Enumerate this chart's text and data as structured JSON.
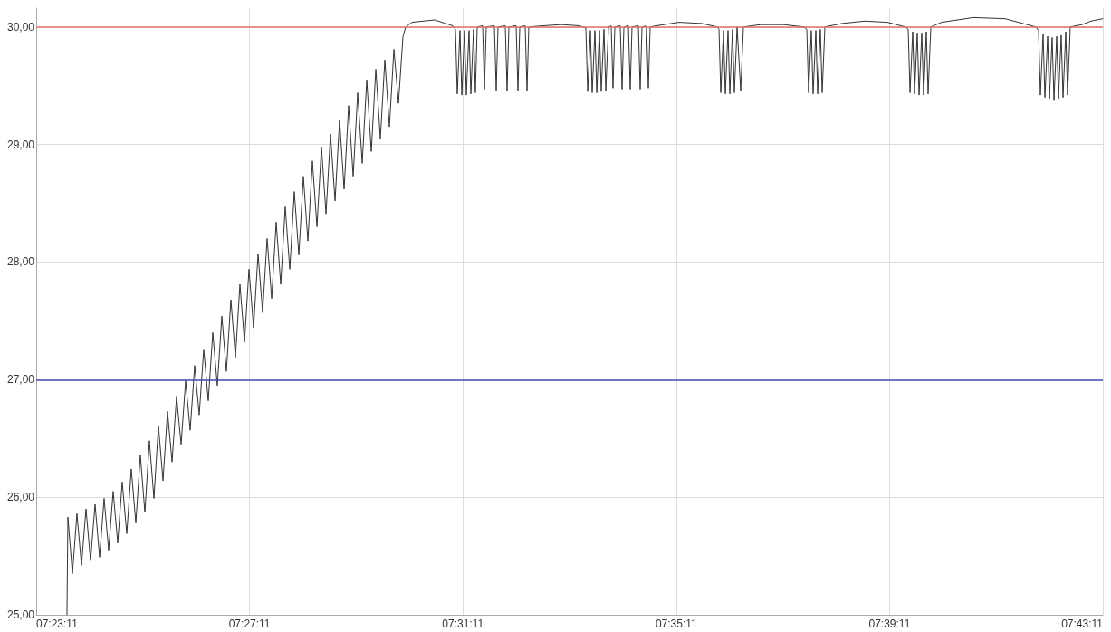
{
  "chart_data": {
    "type": "line",
    "xlim": [
      7.386389,
      7.719722
    ],
    "xticks": [
      {
        "value": 7.386389,
        "label": "07:23:11"
      },
      {
        "value": 7.453056,
        "label": "07:27:11"
      },
      {
        "value": 7.519722,
        "label": "07:31:11"
      },
      {
        "value": 7.586389,
        "label": "07:35:11"
      },
      {
        "value": 7.653056,
        "label": "07:39:11"
      },
      {
        "value": 7.719722,
        "label": "07:43:11"
      }
    ],
    "ylim": [
      25,
      30.16
    ],
    "yticks": [
      {
        "value": 25,
        "label": "25,00"
      },
      {
        "value": 26,
        "label": "26,00"
      },
      {
        "value": 27,
        "label": "27,00"
      },
      {
        "value": 28,
        "label": "28,00"
      },
      {
        "value": 29,
        "label": "29,00"
      },
      {
        "value": 30,
        "label": "30,00"
      }
    ],
    "grid": true,
    "marker": "none",
    "line_style": "solid",
    "ref_lines": [
      {
        "axis": "y",
        "value": 30,
        "color": "#e07070"
      },
      {
        "axis": "y",
        "value": 27,
        "color": "#4a4ab8"
      }
    ],
    "series": [
      {
        "color": "#333333",
        "x": [
          7.396,
          7.39629,
          7.39771,
          7.39912,
          7.40054,
          7.40195,
          7.40337,
          7.40478,
          7.4062,
          7.40761,
          7.40903,
          7.41044,
          7.41186,
          7.41327,
          7.41469,
          7.4161,
          7.41752,
          7.41893,
          7.42035,
          7.42176,
          7.42318,
          7.42459,
          7.42601,
          7.42742,
          7.42884,
          7.43025,
          7.43167,
          7.43308,
          7.4345,
          7.43591,
          7.43733,
          7.43874,
          7.44016,
          7.44157,
          7.44299,
          7.4444,
          7.44582,
          7.44723,
          7.44865,
          7.45006,
          7.45148,
          7.45289,
          7.45431,
          7.45572,
          7.45714,
          7.45855,
          7.45997,
          7.46138,
          7.4628,
          7.46421,
          7.46563,
          7.46704,
          7.46846,
          7.46987,
          7.47129,
          7.4727,
          7.47412,
          7.47553,
          7.47695,
          7.47836,
          7.47978,
          7.48119,
          7.48261,
          7.48402,
          7.48544,
          7.48685,
          7.48827,
          7.48968,
          7.4911,
          7.49251,
          7.49393,
          7.49534,
          7.49676,
          7.49817,
          7.49959,
          7.501,
          7.50185,
          7.50382,
          7.5109,
          7.51656,
          7.5174,
          7.51797,
          7.51882,
          7.51939,
          7.52023,
          7.5208,
          7.52165,
          7.52221,
          7.52306,
          7.52363,
          7.5242,
          7.52589,
          7.52646,
          7.52703,
          7.52957,
          7.53014,
          7.5307,
          7.53297,
          7.53353,
          7.5341,
          7.53636,
          7.53693,
          7.5375,
          7.53919,
          7.53976,
          7.54032,
          7.54485,
          7.55051,
          7.55617,
          7.55815,
          7.55872,
          7.55957,
          7.56013,
          7.56098,
          7.56155,
          7.5624,
          7.56296,
          7.56381,
          7.56438,
          7.56523,
          7.56607,
          7.56664,
          7.56721,
          7.5689,
          7.56947,
          7.57004,
          7.57145,
          7.57202,
          7.57258,
          7.57456,
          7.57513,
          7.5757,
          7.57711,
          7.57768,
          7.57824,
          7.58022,
          7.5873,
          7.59437,
          7.59918,
          7.59975,
          7.60031,
          7.60116,
          7.60173,
          7.60258,
          7.60314,
          7.60399,
          7.60456,
          7.60541,
          7.60654,
          7.60739,
          7.61276,
          7.61984,
          7.62635,
          7.6272,
          7.62776,
          7.62861,
          7.62918,
          7.63003,
          7.63059,
          7.63144,
          7.63201,
          7.63286,
          7.63823,
          7.64531,
          7.65238,
          7.65804,
          7.65889,
          7.65946,
          7.6603,
          7.66087,
          7.66172,
          7.66229,
          7.66313,
          7.6637,
          7.66455,
          7.66511,
          7.66596,
          7.66936,
          7.67926,
          7.68917,
          7.69879,
          7.69964,
          7.7002,
          7.70105,
          7.70162,
          7.70247,
          7.70303,
          7.70388,
          7.70445,
          7.7053,
          7.70586,
          7.70671,
          7.70728,
          7.70813,
          7.70869,
          7.70954,
          7.71322,
          7.71605,
          7.7197
        ],
        "values": [
          25.0,
          25.83,
          25.35,
          25.86,
          25.42,
          25.9,
          25.46,
          25.94,
          25.49,
          25.99,
          25.55,
          26.05,
          25.61,
          26.13,
          25.69,
          26.24,
          25.78,
          26.36,
          25.87,
          26.48,
          25.99,
          26.61,
          26.14,
          26.73,
          26.3,
          26.86,
          26.45,
          26.99,
          26.57,
          27.12,
          26.7,
          27.26,
          26.82,
          27.4,
          26.95,
          27.54,
          27.07,
          27.68,
          27.19,
          27.81,
          27.32,
          27.94,
          27.44,
          28.07,
          27.57,
          28.2,
          27.69,
          28.34,
          27.81,
          28.47,
          27.94,
          28.6,
          28.06,
          28.73,
          28.18,
          28.86,
          28.3,
          28.98,
          28.41,
          29.09,
          28.52,
          29.21,
          28.62,
          29.33,
          28.73,
          29.44,
          28.84,
          29.55,
          28.94,
          29.64,
          29.05,
          29.72,
          29.15,
          29.81,
          29.35,
          29.92,
          30.0,
          30.04,
          30.06,
          30.01,
          29.98,
          29.43,
          29.97,
          29.42,
          29.97,
          29.42,
          29.97,
          29.43,
          29.98,
          29.44,
          30.0,
          30.01,
          29.47,
          30.0,
          30.01,
          29.46,
          30.0,
          30.01,
          29.46,
          30.0,
          30.01,
          29.46,
          30.0,
          30.01,
          29.46,
          30.0,
          30.01,
          30.02,
          30.01,
          29.99,
          29.45,
          29.97,
          29.44,
          29.97,
          29.44,
          29.97,
          29.45,
          29.98,
          29.46,
          30.0,
          30.01,
          29.48,
          30.0,
          30.01,
          29.47,
          30.0,
          30.01,
          29.47,
          30.0,
          30.01,
          29.47,
          30.0,
          30.01,
          29.48,
          30.0,
          30.01,
          30.04,
          30.03,
          30.0,
          29.98,
          29.44,
          29.97,
          29.43,
          29.97,
          29.43,
          29.98,
          29.44,
          30.0,
          29.46,
          30.0,
          30.02,
          30.02,
          30.0,
          29.98,
          29.44,
          29.97,
          29.43,
          29.97,
          29.43,
          29.98,
          29.44,
          30.0,
          30.03,
          30.05,
          30.04,
          30.0,
          29.98,
          29.44,
          29.96,
          29.43,
          29.95,
          29.42,
          29.95,
          29.42,
          29.96,
          29.43,
          30.0,
          30.04,
          30.08,
          30.07,
          30.0,
          29.97,
          29.42,
          29.94,
          29.4,
          29.92,
          29.39,
          29.91,
          29.38,
          29.92,
          29.39,
          29.93,
          29.4,
          29.96,
          29.42,
          30.0,
          30.02,
          30.05,
          30.07
        ]
      }
    ]
  }
}
